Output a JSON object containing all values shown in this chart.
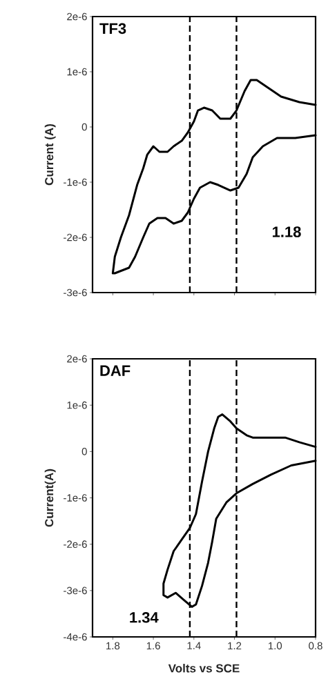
{
  "chart_data": [
    {
      "type": "line",
      "title": "TF3",
      "ylabel": "Current (A)",
      "annotations": [
        "1.18"
      ],
      "tick_labels": "y",
      "xlim": [
        1.9,
        0.8
      ],
      "xticks": [
        {
          "value": 1.8,
          "label": null
        },
        {
          "value": 1.6,
          "label": null
        },
        {
          "value": 1.4,
          "label": null
        },
        {
          "value": 1.2,
          "label": null
        },
        {
          "value": 1.0,
          "label": null
        },
        {
          "value": 0.8,
          "label": null
        }
      ],
      "ylim": [
        -3e-06,
        2e-06
      ],
      "yticks": [
        {
          "value": -3e-06,
          "label": "-3e-6"
        },
        {
          "value": -2e-06,
          "label": "-2e-6"
        },
        {
          "value": -1e-06,
          "label": "-1e-6"
        },
        0,
        {
          "value": 1e-06,
          "label": "1e-6"
        },
        {
          "value": 2e-06,
          "label": "2e-6"
        }
      ],
      "ref_lines": [
        {
          "axis": "x",
          "value": 1.42,
          "line_style": "dashed",
          "color": "#000000"
        },
        {
          "axis": "x",
          "value": 1.19,
          "line_style": "dashed",
          "color": "#000000"
        }
      ],
      "series": [
        {
          "color": "#000000",
          "x": [
            0.8,
            0.88,
            0.97,
            1.03,
            1.09,
            1.12,
            1.15,
            1.19,
            1.22,
            1.27,
            1.31,
            1.35,
            1.38,
            1.4,
            1.43,
            1.46,
            1.5,
            1.53,
            1.57,
            1.6,
            1.63,
            1.65,
            1.68,
            1.72,
            1.76,
            1.79,
            1.8,
            1.79,
            1.72,
            1.69,
            1.65,
            1.62,
            1.58,
            1.54,
            1.5,
            1.46,
            1.43,
            1.4,
            1.37,
            1.32,
            1.28,
            1.22,
            1.18,
            1.14,
            1.11,
            1.06,
            0.99,
            0.9,
            0.8
          ],
          "values": [
            4e-07,
            4.5e-07,
            5.5e-07,
            7e-07,
            8.5e-07,
            8.5e-07,
            6.5e-07,
            3e-07,
            1.5e-07,
            1.5e-07,
            3e-07,
            3.5e-07,
            3e-07,
            1e-07,
            -1e-07,
            -2.5e-07,
            -3.5e-07,
            -4.5e-07,
            -4.5e-07,
            -3.5e-07,
            -5e-07,
            -7.5e-07,
            -1.05e-06,
            -1.6e-06,
            -2e-06,
            -2.35e-06,
            -2.65e-06,
            -2.65e-06,
            -2.55e-06,
            -2.35e-06,
            -2e-06,
            -1.75e-06,
            -1.65e-06,
            -1.65e-06,
            -1.75e-06,
            -1.7e-06,
            -1.55e-06,
            -1.3e-06,
            -1.1e-06,
            -1e-06,
            -1.05e-06,
            -1.15e-06,
            -1.1e-06,
            -8.5e-07,
            -5.5e-07,
            -3.5e-07,
            -2e-07,
            -2e-07,
            -1.5e-07
          ]
        }
      ]
    },
    {
      "type": "line",
      "title": "DAF",
      "xlabel": "Volts vs SCE",
      "ylabel": "Current(A)",
      "annotations": [
        "1.34"
      ],
      "xlim": [
        1.9,
        0.8
      ],
      "xticks": [
        {
          "value": 1.8,
          "label": "1.8"
        },
        {
          "value": 1.6,
          "label": "1.6"
        },
        {
          "value": 1.4,
          "label": "1.4"
        },
        {
          "value": 1.2,
          "label": "1.2"
        },
        {
          "value": 1.0,
          "label": "1.0"
        },
        {
          "value": 0.8,
          "label": "0.8"
        }
      ],
      "ylim": [
        -4e-06,
        2e-06
      ],
      "yticks": [
        {
          "value": -4e-06,
          "label": "-4e-6"
        },
        {
          "value": -3e-06,
          "label": "-3e-6"
        },
        {
          "value": -2e-06,
          "label": "-2e-6"
        },
        {
          "value": -1e-06,
          "label": "-1e-6"
        },
        0,
        {
          "value": 1e-06,
          "label": "1e-6"
        },
        {
          "value": 2e-06,
          "label": "2e-6"
        }
      ],
      "ref_lines": [
        {
          "axis": "x",
          "value": 1.42,
          "line_style": "dashed",
          "color": "#000000"
        },
        {
          "axis": "x",
          "value": 1.19,
          "line_style": "dashed",
          "color": "#000000"
        }
      ],
      "series": [
        {
          "color": "#000000",
          "x": [
            0.8,
            0.88,
            0.95,
            1.11,
            1.14,
            1.19,
            1.22,
            1.26,
            1.28,
            1.3,
            1.33,
            1.36,
            1.39,
            1.42,
            1.46,
            1.5,
            1.53,
            1.55,
            1.55,
            1.53,
            1.49,
            1.45,
            1.41,
            1.39,
            1.36,
            1.33,
            1.31,
            1.29,
            1.24,
            1.19,
            1.11,
            1.02,
            0.92,
            0.8
          ],
          "values": [
            1e-07,
            2e-07,
            3e-07,
            3e-07,
            3.5e-07,
            5e-07,
            6.5e-07,
            8e-07,
            7.5e-07,
            5e-07,
            0,
            -6.5e-07,
            -1.35e-06,
            -1.65e-06,
            -1.9e-06,
            -2.15e-06,
            -2.55e-06,
            -2.85e-06,
            -3.1e-06,
            -3.15e-06,
            -3.05e-06,
            -3.2e-06,
            -3.35e-06,
            -3.3e-06,
            -2.9e-06,
            -2.4e-06,
            -1.95e-06,
            -1.45e-06,
            -1.1e-06,
            -9e-07,
            -7e-07,
            -5e-07,
            -3e-07,
            -2e-07
          ]
        }
      ]
    }
  ]
}
